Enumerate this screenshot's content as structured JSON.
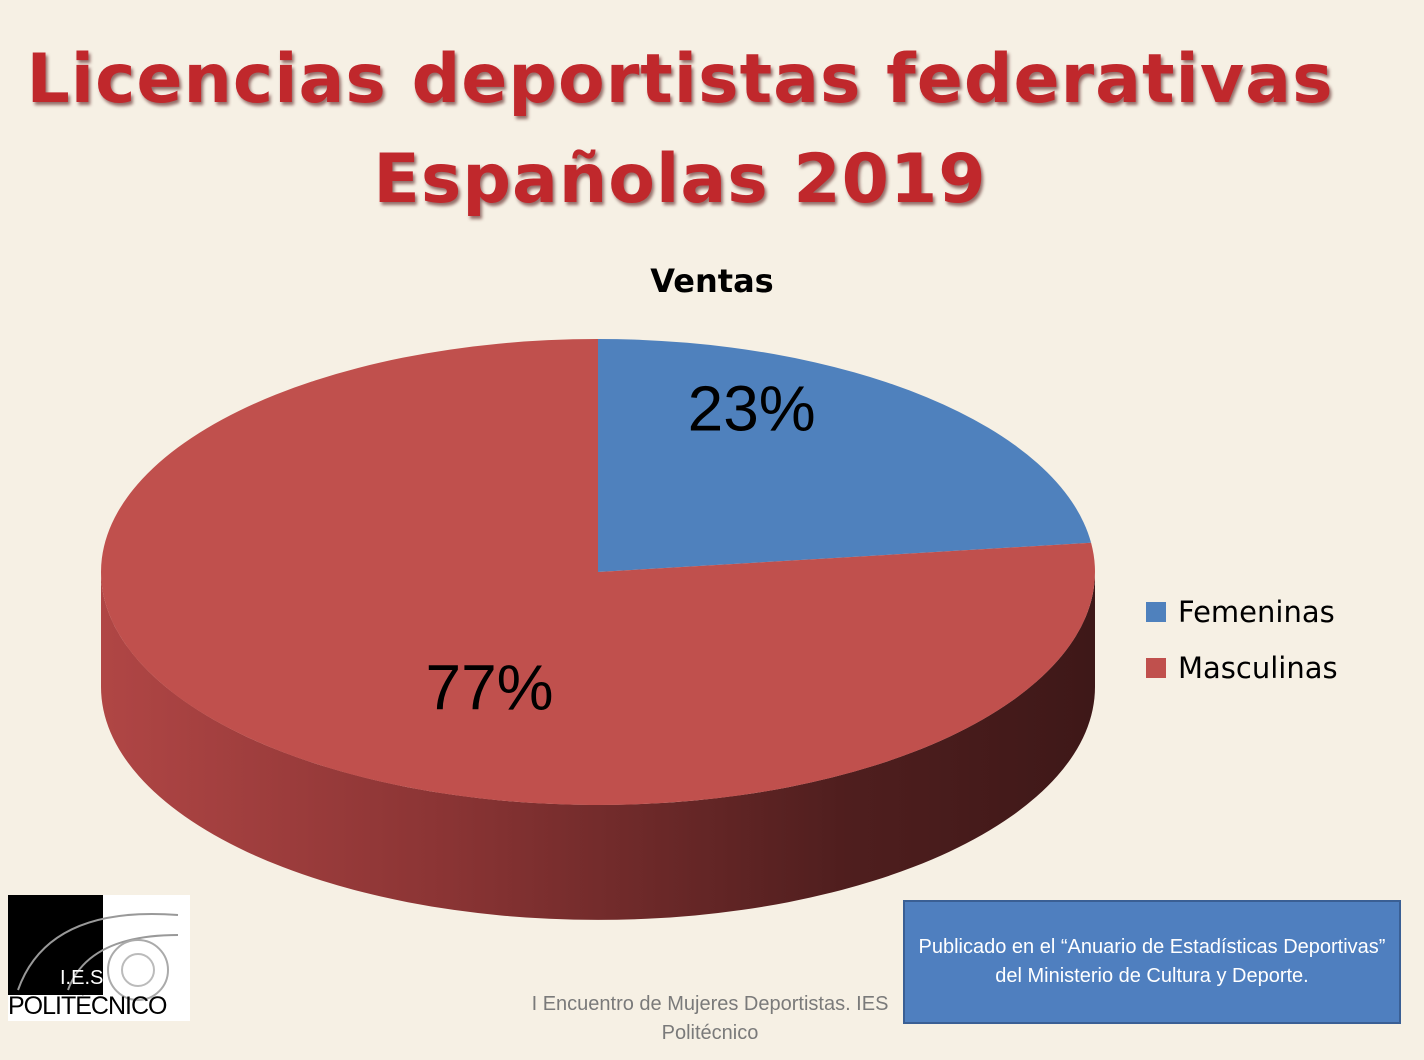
{
  "slide": {
    "title_line1": "Licencias deportistas federativas",
    "title_line2": "Españolas 2019",
    "footer": "I Encuentro de Mujeres Deportistas. IES Politécnico",
    "note": "Publicado en el “Anuario de Estadísticas Deportivas” del Ministerio de Cultura y Deporte.",
    "logo_text": "I.E.S. POLITÉCNICO"
  },
  "chart_data": {
    "type": "pie",
    "title": "Ventas",
    "categories": [
      "Femeninas",
      "Masculinas"
    ],
    "values": [
      23,
      77
    ],
    "labels": [
      "23%",
      "77%"
    ],
    "colors": [
      "#4f81bd",
      "#c0504d"
    ],
    "legend_position": "right",
    "style": "3d"
  }
}
